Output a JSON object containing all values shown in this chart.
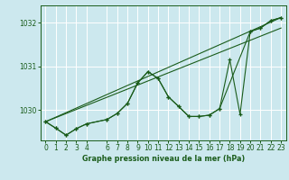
{
  "title": "Graphe pression niveau de la mer (hPa)",
  "bg_color": "#cce8ee",
  "grid_color": "#ffffff",
  "line_color": "#1a5c1a",
  "xlim": [
    -0.5,
    23.5
  ],
  "ylim": [
    1029.3,
    1032.4
  ],
  "yticks": [
    1030,
    1031,
    1032
  ],
  "xticks": [
    0,
    1,
    2,
    3,
    4,
    6,
    7,
    8,
    9,
    10,
    11,
    12,
    13,
    14,
    15,
    16,
    17,
    18,
    19,
    20,
    21,
    22,
    23
  ],
  "series_main_x": [
    0,
    1,
    2,
    3,
    4,
    6,
    7,
    8,
    9,
    10,
    11,
    12,
    13,
    14,
    15,
    16,
    17,
    18,
    19,
    20,
    21,
    22,
    23
  ],
  "series_main_y": [
    1029.73,
    1029.58,
    1029.42,
    1029.57,
    1029.68,
    1029.78,
    1029.92,
    1030.15,
    1030.62,
    1030.88,
    1030.72,
    1030.3,
    1030.08,
    1029.85,
    1029.85,
    1029.88,
    1030.03,
    1031.15,
    1029.9,
    1031.8,
    1031.88,
    1032.05,
    1032.12
  ],
  "series_smooth_x": [
    0,
    1,
    2,
    3,
    4,
    6,
    7,
    8,
    9,
    10,
    11,
    12,
    13,
    14,
    15,
    16,
    17,
    20,
    21,
    22,
    23
  ],
  "series_smooth_y": [
    1029.73,
    1029.58,
    1029.42,
    1029.57,
    1029.68,
    1029.78,
    1029.92,
    1030.15,
    1030.62,
    1030.88,
    1030.72,
    1030.3,
    1030.08,
    1029.85,
    1029.85,
    1029.88,
    1030.03,
    1031.8,
    1031.88,
    1032.05,
    1032.12
  ],
  "trend1_x": [
    0,
    23
  ],
  "trend1_y": [
    1029.73,
    1032.12
  ],
  "trend2_x": [
    0,
    23
  ],
  "trend2_y": [
    1029.73,
    1031.88
  ]
}
